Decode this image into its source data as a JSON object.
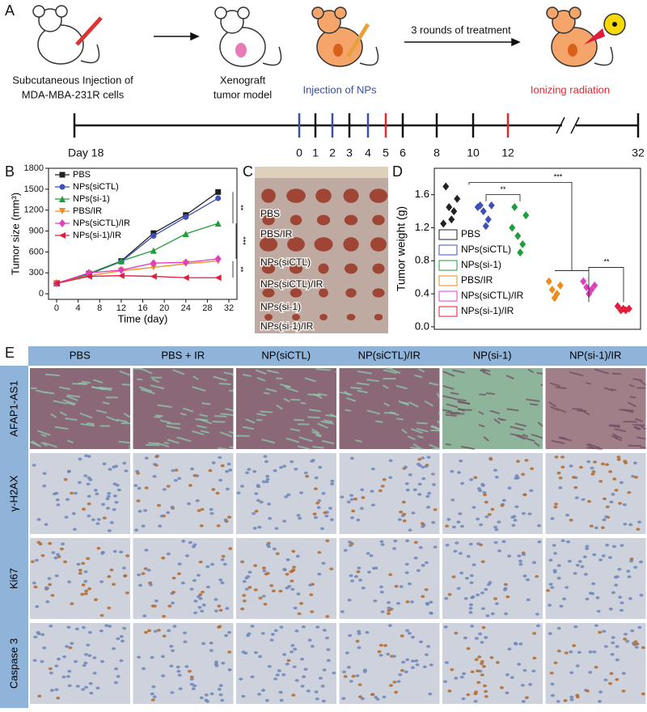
{
  "panel_labels": [
    "A",
    "B",
    "C",
    "D",
    "E"
  ],
  "panel_a": {
    "captions": [
      "Subcutaneous Injection of",
      "MDA-MBA-231R cells",
      "Xenograft",
      "tumor model",
      "Injection of NPs",
      "3 rounds of treatment",
      "Ionizing radiation"
    ],
    "timeline_ticks": [
      {
        "value": 18,
        "label": "Day 18"
      },
      0,
      1,
      2,
      3,
      4,
      5,
      6,
      8,
      10,
      12,
      32
    ],
    "tick_colors": [
      "#111111",
      "#3a4fa8",
      "#111111",
      "#3a4fa8",
      "#111111",
      "#3a4fa8",
      "#e0262e",
      "#111111",
      "#111111",
      "#111111",
      "#e0262e",
      "#111111"
    ]
  },
  "chart_data": [
    {
      "type": "line",
      "xlabel": "Time (day)",
      "ylabel": "Tumor size (mm³)",
      "x": [
        0,
        6,
        12,
        18,
        24,
        30
      ],
      "xlim": [
        -1.5,
        33.5
      ],
      "xticks": [
        0,
        4,
        8,
        12,
        16,
        20,
        24,
        28,
        32
      ],
      "ylim": [
        -80,
        1800
      ],
      "yticks": [
        0,
        300,
        600,
        900,
        1200,
        1500,
        1800
      ],
      "legend": "upper left",
      "series": [
        {
          "name": "PBS",
          "color": "#222222",
          "marker": "square",
          "values": [
            150,
            290,
            470,
            870,
            1130,
            1460
          ]
        },
        {
          "name": "NPs(siCTL)",
          "color": "#3f51b5",
          "marker": "circle",
          "values": [
            150,
            280,
            460,
            830,
            1100,
            1370
          ]
        },
        {
          "name": "NPs(si-1)",
          "color": "#1e9e3a",
          "marker": "triangle-up",
          "values": [
            150,
            290,
            470,
            620,
            860,
            1010
          ]
        },
        {
          "name": "PBS/IR",
          "color": "#f08a1c",
          "marker": "triangle-down",
          "values": [
            150,
            260,
            330,
            380,
            430,
            470
          ]
        },
        {
          "name": "NPs(siCTL)/IR",
          "color": "#e040c0",
          "marker": "diamond",
          "values": [
            150,
            300,
            340,
            440,
            450,
            500
          ]
        },
        {
          "name": "NPs(si-1)/IR",
          "color": "#e01e3c",
          "marker": "triangle-left",
          "values": [
            150,
            250,
            260,
            250,
            230,
            230
          ]
        }
      ],
      "annotations": [
        "**",
        "***",
        "**"
      ]
    },
    {
      "type": "strip",
      "ylabel": "Tumor weight (g)",
      "ylim": [
        -0.03,
        1.92
      ],
      "yticks": [
        {
          "value": 0,
          "label": "0.0"
        },
        0.4,
        0.8,
        1.2,
        1.6
      ],
      "series": [
        {
          "name": "PBS",
          "color": "#222222",
          "values": [
            1.7,
            1.55,
            1.45,
            1.4,
            1.3,
            1.25
          ]
        },
        {
          "name": "NPs(siCTL)",
          "color": "#3f51b5",
          "values": [
            1.47,
            1.47,
            1.4,
            1.3,
            1.22,
            1.45
          ]
        },
        {
          "name": "NPs(si-1)",
          "color": "#1e9e3a",
          "values": [
            1.45,
            1.35,
            1.1,
            1.0,
            0.9,
            1.2
          ]
        },
        {
          "name": "PBS/IR",
          "color": "#f08a1c",
          "values": [
            0.55,
            0.5,
            0.45,
            0.4,
            0.35
          ]
        },
        {
          "name": "NPs(siCTL)/IR",
          "color": "#e040c0",
          "values": [
            0.55,
            0.5,
            0.48,
            0.45,
            0.4
          ]
        },
        {
          "name": "NPs(si-1)/IR",
          "color": "#e01e3c",
          "values": [
            0.25,
            0.22,
            0.2,
            0.2,
            0.22
          ]
        }
      ],
      "annotations": [
        "**",
        "***",
        "**"
      ]
    }
  ],
  "panel_c": {
    "labels": [
      "PBS",
      "PBS/IR",
      "NPs(siCTL)",
      "NPs(siCTL)/IR",
      "NPs(si-1)",
      "NPs(si-1)/IR"
    ]
  },
  "panel_e": {
    "columns": [
      "PBS",
      "PBS + IR",
      "NP(siCTL)",
      "NP(siCTL)/IR",
      "NP(si-1)",
      "NP(si-1)/IR"
    ],
    "rows": [
      "AFAP1-AS1",
      "γ-H2AX",
      "Ki67",
      "Caspase 3"
    ]
  }
}
